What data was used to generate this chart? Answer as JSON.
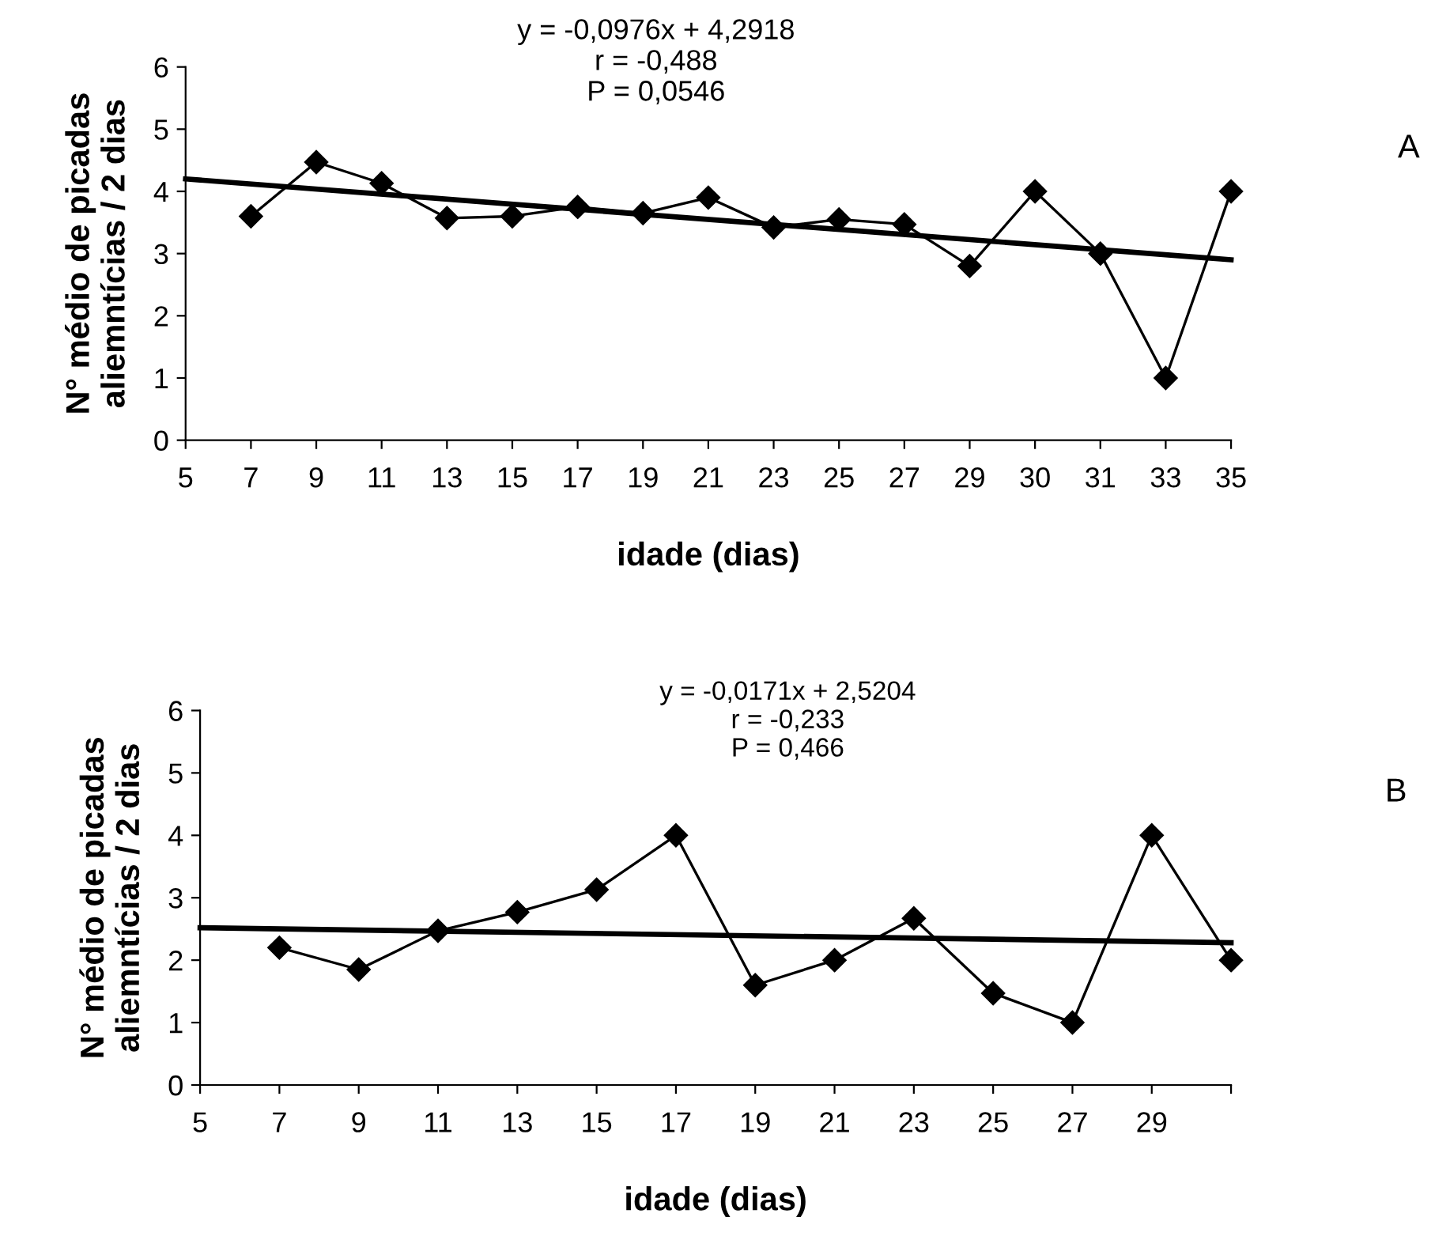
{
  "chart_data": [
    {
      "type": "line",
      "categories": [
        "5",
        "7",
        "9",
        "11",
        "13",
        "15",
        "17",
        "19",
        "21",
        "23",
        "25",
        "27",
        "29",
        "30",
        "31",
        "33",
        "35"
      ],
      "series": [
        {
          "color": "#000000",
          "marker": "diamond",
          "values": [
            null,
            3.6,
            4.47,
            4.13,
            3.57,
            3.6,
            3.75,
            3.65,
            3.9,
            3.42,
            3.55,
            3.47,
            2.8,
            4.0,
            3.0,
            1.0,
            4.0
          ]
        },
        {
          "color": "#000000",
          "marker": "none",
          "values": [
            4.2,
            null,
            null,
            null,
            null,
            null,
            null,
            null,
            null,
            null,
            null,
            null,
            null,
            null,
            null,
            null,
            2.9
          ]
        }
      ],
      "ylim": [
        0,
        6
      ],
      "yticks": [
        0,
        1,
        2,
        3,
        4,
        5,
        6
      ],
      "xlabel": "idade (dias)",
      "ylabel": "N° médio de picadas\naliemntícias / 2 dias",
      "annotations": [
        "y = -0,0976x + 4,2918\nr = -0,488\nP = 0,0546",
        "A"
      ],
      "grid": false,
      "legend": false
    },
    {
      "type": "line",
      "categories": [
        "5",
        "7",
        "9",
        "11",
        "13",
        "15",
        "17",
        "19",
        "21",
        "23",
        "25",
        "27",
        "29",
        null
      ],
      "series": [
        {
          "color": "#000000",
          "marker": "diamond",
          "values": [
            null,
            2.2,
            1.85,
            2.47,
            2.77,
            3.13,
            4.0,
            1.6,
            2.0,
            2.67,
            1.47,
            1.0,
            4.0,
            2.0
          ]
        },
        {
          "color": "#000000",
          "marker": "none",
          "values": [
            2.52,
            null,
            null,
            null,
            null,
            null,
            null,
            null,
            null,
            null,
            null,
            null,
            null,
            2.28
          ]
        }
      ],
      "ylim": [
        0,
        6
      ],
      "yticks": [
        0,
        1,
        2,
        3,
        4,
        5,
        6
      ],
      "xlabel": "idade (dias)",
      "ylabel": "N° médio de picadas\naliemntícias / 2 dias",
      "annotations": [
        "y = -0,0171x + 2,5204\nr = -0,233\nP = 0,466",
        "B"
      ],
      "grid": false,
      "legend": false
    }
  ]
}
